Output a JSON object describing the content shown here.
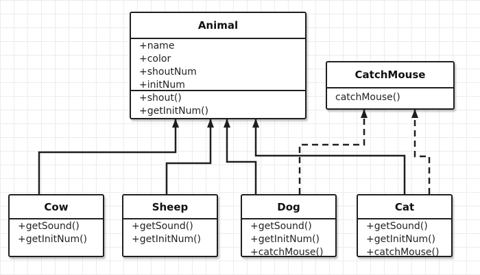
{
  "diagram": {
    "classes": {
      "animal": {
        "name": "Animal",
        "attributes": [
          "+name",
          "+color",
          "+shoutNum",
          "+initNum"
        ],
        "methods": [
          "+shout()",
          "+getInitNum()"
        ]
      },
      "catch_mouse": {
        "name": "CatchMouse",
        "methods": [
          "catchMouse()"
        ]
      },
      "cow": {
        "name": "Cow",
        "methods": [
          "+getSound()",
          "+getInitNum()"
        ]
      },
      "sheep": {
        "name": "Sheep",
        "methods": [
          "+getSound()",
          "+getInitNum()"
        ]
      },
      "dog": {
        "name": "Dog",
        "methods": [
          "+getSound()",
          "+getInitNum()",
          "+catchMouse()"
        ]
      },
      "cat": {
        "name": "Cat",
        "methods": [
          "+getSound()",
          "+getInitNum()",
          "+catchMouse()"
        ]
      }
    },
    "relations": [
      {
        "from": "Cow",
        "to": "Animal",
        "type": "generalization"
      },
      {
        "from": "Sheep",
        "to": "Animal",
        "type": "generalization"
      },
      {
        "from": "Dog",
        "to": "Animal",
        "type": "generalization"
      },
      {
        "from": "Cat",
        "to": "Animal",
        "type": "generalization"
      },
      {
        "from": "Dog",
        "to": "CatchMouse",
        "type": "realization"
      },
      {
        "from": "Cat",
        "to": "CatchMouse",
        "type": "realization"
      }
    ],
    "colors": {
      "line": "#1e1e1e",
      "grid": "#ececec",
      "background": "#ffffff"
    }
  }
}
